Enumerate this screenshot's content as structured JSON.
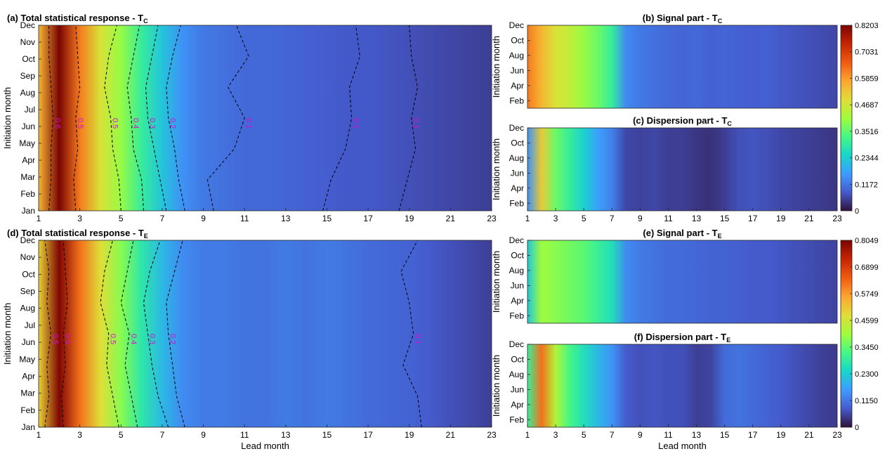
{
  "chart_data": [
    {
      "id": "a",
      "type": "heatmap",
      "title": "(a) Total statistical response - T",
      "title_sub": "C",
      "xlabel": "",
      "ylabel": "Initiation month",
      "months": [
        "Jan",
        "Feb",
        "Mar",
        "Apr",
        "May",
        "Jun",
        "Jul",
        "Aug",
        "Sep",
        "Oct",
        "Nov",
        "Dec"
      ],
      "y_ticks": [
        "Jan",
        "Feb",
        "Mar",
        "Apr",
        "May",
        "Jun",
        "Jul",
        "Aug",
        "Sep",
        "Oct",
        "Nov",
        "Dec"
      ],
      "x_ticks": [
        "1",
        "3",
        "5",
        "7",
        "9",
        "11",
        "13",
        "15",
        "17",
        "19",
        "21",
        "23"
      ],
      "xlim": [
        1,
        23
      ],
      "lead_month": [
        1,
        2,
        3,
        4,
        5,
        6,
        7,
        8,
        9,
        10,
        11,
        12,
        13,
        14,
        15,
        16,
        17,
        18,
        19,
        20,
        21,
        22,
        23
      ],
      "values": [
        0.55,
        0.82,
        0.62,
        0.48,
        0.4,
        0.3,
        0.22,
        0.15,
        0.12,
        0.11,
        0.1,
        0.1,
        0.095,
        0.09,
        0.085,
        0.08,
        0.08,
        0.075,
        0.07,
        0.065,
        0.06,
        0.055,
        0.05
      ],
      "contours": [
        {
          "label": "0.6",
          "x": [
            1.5,
            1.6,
            1.6,
            1.7,
            1.6,
            1.5,
            1.5
          ]
        },
        {
          "label": "0.5",
          "x": [
            2.8,
            2.7,
            2.9,
            2.8,
            3.0,
            2.9,
            2.8
          ]
        },
        {
          "label": "0.5",
          "x": [
            5.0,
            4.9,
            4.6,
            4.5,
            4.2,
            4.4,
            4.8
          ]
        },
        {
          "label": "0.4",
          "x": [
            6.1,
            6.0,
            5.6,
            5.5,
            5.3,
            5.6,
            5.9
          ]
        },
        {
          "label": "0.3",
          "x": [
            7.2,
            6.9,
            6.6,
            6.3,
            6.2,
            6.5,
            6.8
          ]
        },
        {
          "label": "0.2",
          "x": [
            8.1,
            7.8,
            7.6,
            7.3,
            7.2,
            7.5,
            7.9
          ]
        },
        {
          "label": "0.1",
          "x": [
            9.5,
            9.2,
            10.5,
            11.0,
            10.2,
            11.2,
            10.6
          ]
        },
        {
          "label": "0.1",
          "x": [
            14.8,
            15.2,
            15.9,
            16.2,
            16.1,
            16.6,
            16.4
          ]
        },
        {
          "label": "0.1",
          "x": [
            18.5,
            18.9,
            19.3,
            19.1,
            19.4,
            19.1,
            19.0
          ]
        }
      ],
      "clim": [
        0,
        0.8203
      ]
    },
    {
      "id": "b",
      "type": "heatmap",
      "title": "(b) Signal part - T",
      "title_sub": "C",
      "xlabel": "",
      "ylabel": "Initiation month",
      "y_ticks": [
        "Feb",
        "Apr",
        "Jun",
        "Aug",
        "Oct",
        "Dec"
      ],
      "x_ticks": [],
      "values": [
        0.62,
        0.55,
        0.48,
        0.45,
        0.4,
        0.36,
        0.3,
        0.14,
        0.12,
        0.11,
        0.1,
        0.095,
        0.1,
        0.09,
        0.095,
        0.09,
        0.085,
        0.09,
        0.08,
        0.075,
        0.07,
        0.065,
        0.06
      ],
      "clim": [
        0,
        0.8203
      ],
      "colorbar_ticks": [
        "0",
        "0.1172",
        "0.2344",
        "0.3516",
        "0.4687",
        "0.5859",
        "0.7031",
        "0.8203"
      ]
    },
    {
      "id": "c",
      "type": "heatmap",
      "title": "(c) Dispersion part - T",
      "title_sub": "C",
      "xlabel": "",
      "ylabel": "Initiation month",
      "y_ticks": [
        "Feb",
        "Apr",
        "Jun",
        "Aug",
        "Oct",
        "Dec"
      ],
      "x_ticks": [
        "1",
        "3",
        "5",
        "7",
        "9",
        "11",
        "13",
        "15",
        "17",
        "19",
        "21",
        "23"
      ],
      "values": [
        0.15,
        0.52,
        0.36,
        0.3,
        0.24,
        0.17,
        0.13,
        0.06,
        0.055,
        0.06,
        0.05,
        0.05,
        0.04,
        0.035,
        0.05,
        0.07,
        0.075,
        0.07,
        0.06,
        0.055,
        0.05,
        0.045,
        0.04
      ],
      "clim": [
        0,
        0.8203
      ]
    },
    {
      "id": "d",
      "type": "heatmap",
      "title": "(d) Total statistical response - T",
      "title_sub": "E",
      "xlabel": "Lead month",
      "ylabel": "Initiation month",
      "y_ticks": [
        "Jan",
        "Feb",
        "Mar",
        "Apr",
        "May",
        "Jun",
        "Jul",
        "Aug",
        "Sep",
        "Oct",
        "Nov",
        "Dec"
      ],
      "x_ticks": [
        "1",
        "3",
        "5",
        "7",
        "9",
        "11",
        "13",
        "15",
        "17",
        "19",
        "21",
        "23"
      ],
      "values": [
        0.5,
        0.8,
        0.62,
        0.48,
        0.38,
        0.28,
        0.2,
        0.14,
        0.12,
        0.12,
        0.11,
        0.11,
        0.12,
        0.11,
        0.12,
        0.11,
        0.1,
        0.095,
        0.09,
        0.08,
        0.07,
        0.06,
        0.05
      ],
      "contours": [
        {
          "label": "0.5",
          "x": [
            1.3,
            1.5,
            1.4,
            1.6,
            1.4,
            1.5,
            1.3
          ]
        },
        {
          "label": "0.6",
          "x": [
            2.2,
            2.1,
            2.3,
            2.2,
            2.4,
            2.3,
            2.2
          ]
        },
        {
          "label": "0.5",
          "x": [
            4.9,
            4.6,
            4.3,
            4.4,
            4.0,
            4.2,
            4.6
          ]
        },
        {
          "label": "0.4",
          "x": [
            5.8,
            5.5,
            5.2,
            5.4,
            5.0,
            5.3,
            5.6
          ]
        },
        {
          "label": "0.3",
          "x": [
            7.3,
            6.8,
            6.5,
            6.3,
            6.1,
            6.4,
            6.9
          ]
        },
        {
          "label": "0.2",
          "x": [
            8.1,
            7.7,
            7.5,
            7.3,
            7.2,
            7.6,
            8.0
          ]
        },
        {
          "label": "0.1",
          "x": [
            19.6,
            19.4,
            18.7,
            19.2,
            19.0,
            18.6,
            19.4
          ]
        }
      ],
      "clim": [
        0,
        0.8049
      ]
    },
    {
      "id": "e",
      "type": "heatmap",
      "title": "(e) Signal part - T",
      "title_sub": "E",
      "xlabel": "",
      "ylabel": "Initiation month",
      "y_ticks": [
        "Feb",
        "Apr",
        "Jun",
        "Aug",
        "Oct",
        "Dec"
      ],
      "x_ticks": [],
      "values": [
        0.22,
        0.4,
        0.38,
        0.36,
        0.34,
        0.3,
        0.26,
        0.14,
        0.12,
        0.11,
        0.1,
        0.1,
        0.095,
        0.09,
        0.09,
        0.085,
        0.08,
        0.08,
        0.075,
        0.07,
        0.065,
        0.06,
        0.055
      ],
      "clim": [
        0,
        0.8049
      ],
      "colorbar_ticks": [
        "0",
        "0.1150",
        "0.2300",
        "0.3450",
        "0.4599",
        "0.5749",
        "0.6899",
        "0.8049"
      ]
    },
    {
      "id": "f",
      "type": "heatmap",
      "title": "(f) Dispersion part - T",
      "title_sub": "E",
      "xlabel": "Lead month",
      "ylabel": "Initiation month",
      "y_ticks": [
        "Feb",
        "Apr",
        "Jun",
        "Aug",
        "Oct",
        "Dec"
      ],
      "x_ticks": [
        "1",
        "3",
        "5",
        "7",
        "9",
        "11",
        "13",
        "15",
        "17",
        "19",
        "21",
        "23"
      ],
      "values": [
        0.3,
        0.62,
        0.42,
        0.32,
        0.26,
        0.2,
        0.15,
        0.08,
        0.07,
        0.075,
        0.07,
        0.07,
        0.05,
        0.055,
        0.1,
        0.11,
        0.1,
        0.09,
        0.08,
        0.07,
        0.06,
        0.05,
        0.045
      ],
      "clim": [
        0,
        0.8049
      ]
    }
  ]
}
